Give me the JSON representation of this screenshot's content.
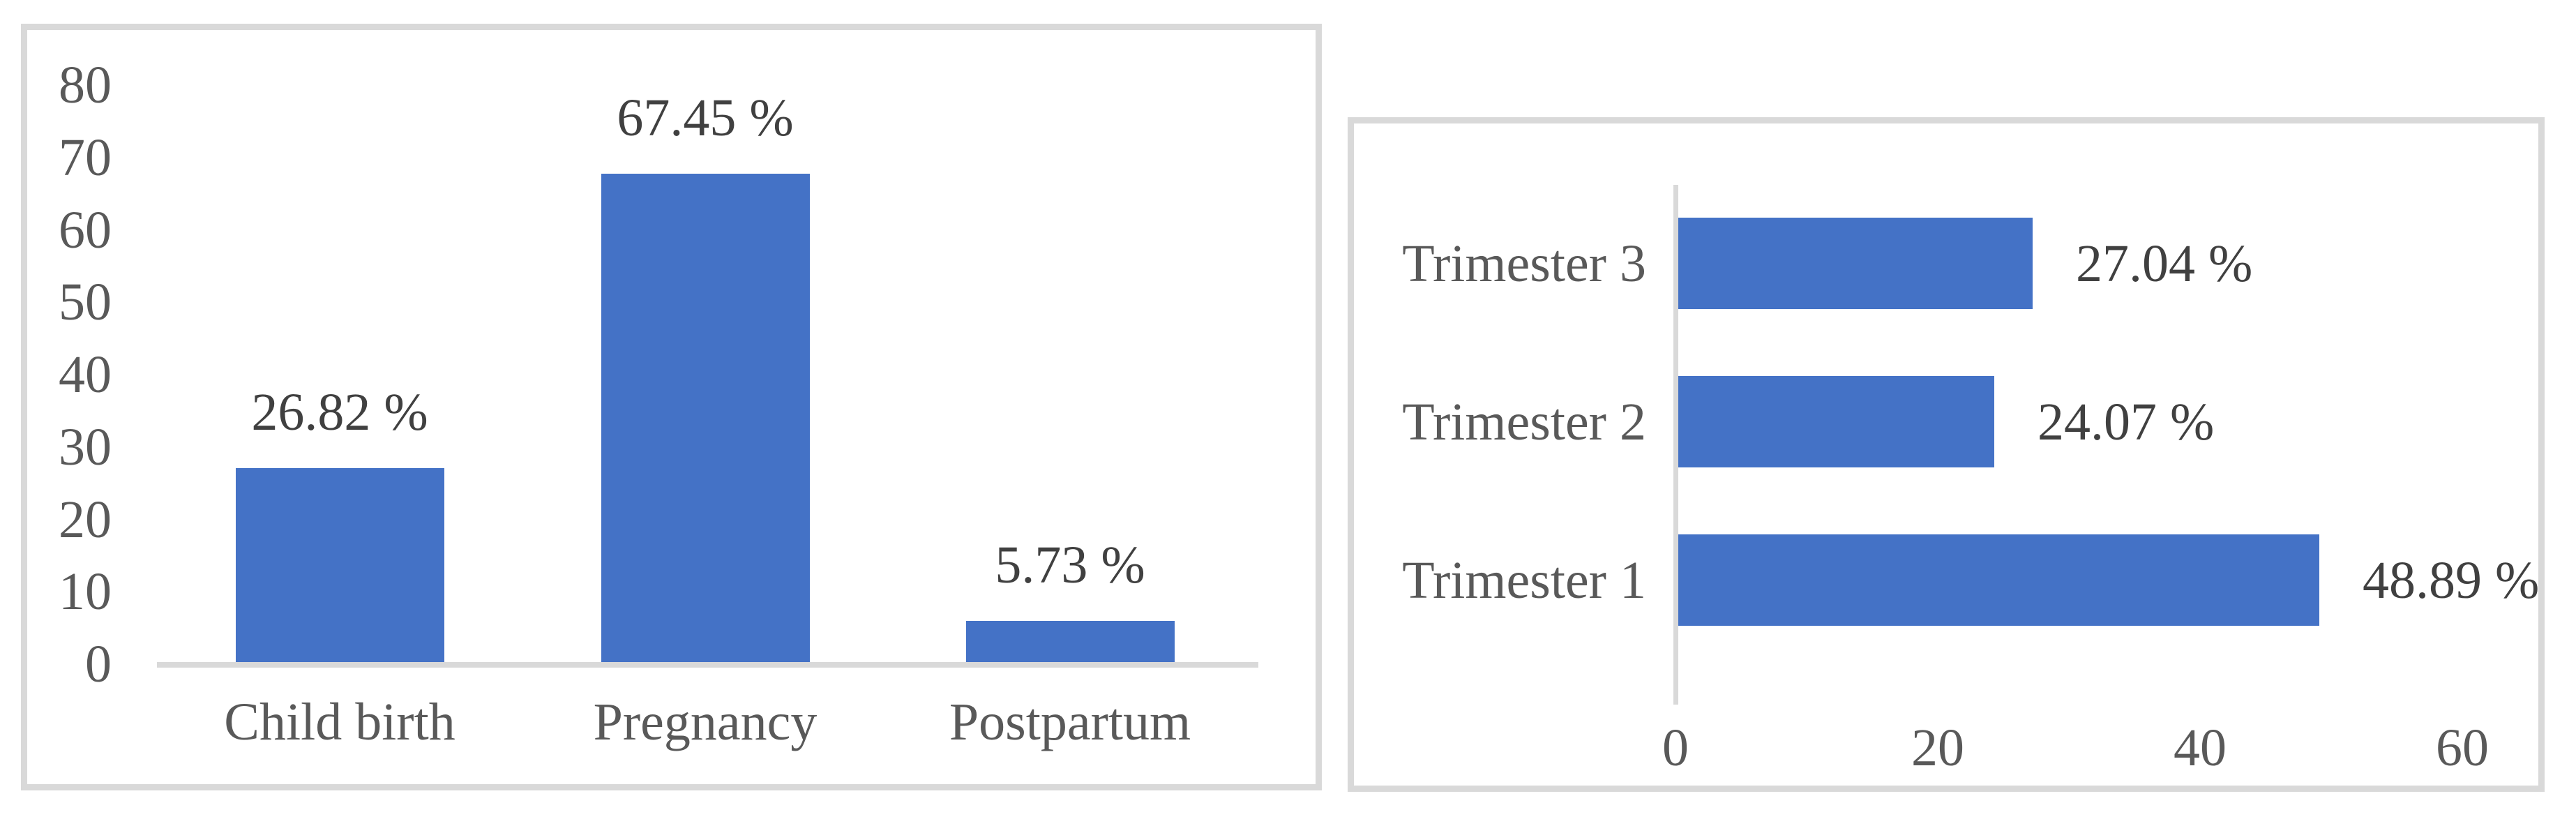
{
  "page": {
    "background": "#ffffff"
  },
  "colors": {
    "bar": "#4472C6",
    "panel_border": "#D9D9D9",
    "axis_line": "#D9D9D9",
    "tick_text": "#595959",
    "category_text": "#595959",
    "value_label_text": "#404040"
  },
  "chart_data": [
    {
      "type": "bar",
      "orientation": "vertical",
      "title": "",
      "xlabel": "",
      "ylabel": "",
      "categories": [
        "Child birth",
        "Pregnancy",
        "Postpartum"
      ],
      "values": [
        26.82,
        67.45,
        5.73
      ],
      "data_labels": [
        "26.82 %",
        "67.45 %",
        "5.73 %"
      ],
      "y_ticks": [
        0,
        10,
        20,
        30,
        40,
        50,
        60,
        70,
        80
      ],
      "y_tick_labels": [
        "0",
        "10",
        "20",
        "30",
        "40",
        "50",
        "60",
        "70",
        "80"
      ],
      "ylim": [
        0,
        80
      ],
      "grid": false,
      "legend": false,
      "bar_color": "#4472C6"
    },
    {
      "type": "bar",
      "orientation": "horizontal",
      "title": "",
      "xlabel": "",
      "ylabel": "",
      "categories_top_to_bottom": [
        "Trimester 3",
        "Trimester 2",
        "Trimester 1"
      ],
      "values_top_to_bottom": [
        27.04,
        24.07,
        48.89
      ],
      "data_labels_top_to_bottom": [
        "27.04 %",
        "24.07 %",
        "48.89 %"
      ],
      "x_ticks": [
        0,
        20,
        40,
        60
      ],
      "x_tick_labels": [
        "0",
        "20",
        "40",
        "60"
      ],
      "xlim": [
        0,
        60
      ],
      "grid": false,
      "legend": false,
      "bar_color": "#4472C6"
    }
  ]
}
